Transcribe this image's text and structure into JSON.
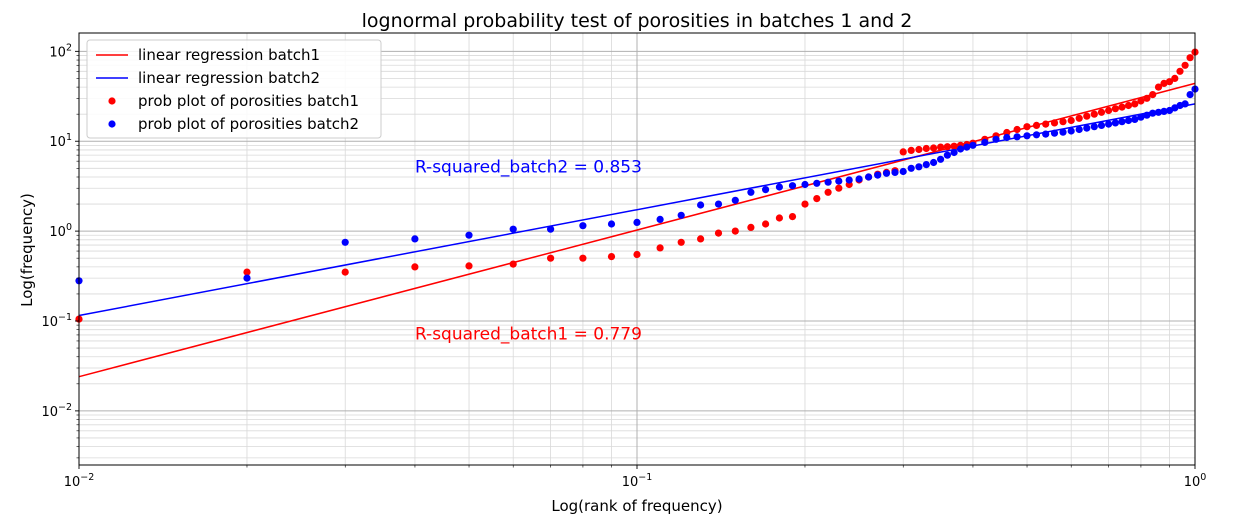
{
  "chart_data": {
    "type": "scatter",
    "title": "lognormal probability test of porosities in batches 1 and 2",
    "xlabel": "Log(rank of frequency)",
    "ylabel": "Log(frequency)",
    "xscale": "log",
    "yscale": "log",
    "xlim": [
      0.01,
      1
    ],
    "ylim": [
      0.0025,
      160
    ],
    "grid": "on (major and minor)",
    "legend_position": "top-left",
    "x_ticks": [
      {
        "value": 0.01,
        "base": "10",
        "exp": "−2"
      },
      {
        "value": 0.1,
        "base": "10",
        "exp": "−1"
      },
      {
        "value": 1,
        "base": "10",
        "exp": "0"
      }
    ],
    "y_ticks": [
      {
        "value": 0.01,
        "base": "10",
        "exp": "−2"
      },
      {
        "value": 0.1,
        "base": "10",
        "exp": "−1"
      },
      {
        "value": 1,
        "base": "10",
        "exp": "0"
      },
      {
        "value": 10,
        "base": "10",
        "exp": "1"
      },
      {
        "value": 100,
        "base": "10",
        "exp": "2"
      }
    ],
    "legend": [
      {
        "label": "linear regression batch1",
        "kind": "line",
        "color": "#ff0000"
      },
      {
        "label": "linear regression batch2",
        "kind": "line",
        "color": "#0000ff"
      },
      {
        "label": "prob plot of porosities batch1",
        "kind": "marker",
        "color": "#ff0000"
      },
      {
        "label": "prob plot of porosities batch2",
        "kind": "marker",
        "color": "#0000ff"
      }
    ],
    "annotations": [
      {
        "text": "R-squared_batch2 = 0.853",
        "color": "#0000ff",
        "x": 0.04,
        "y": 4.5
      },
      {
        "text": "R-squared_batch1 = 0.779",
        "color": "#ff0000",
        "x": 0.04,
        "y": 0.062
      }
    ],
    "series": [
      {
        "name": "linear regression batch1",
        "kind": "line",
        "color": "#ff0000",
        "x": [
          0.01,
          1
        ],
        "y": [
          0.024,
          44
        ]
      },
      {
        "name": "linear regression batch2",
        "kind": "line",
        "color": "#0000ff",
        "x": [
          0.01,
          1
        ],
        "y": [
          0.115,
          26
        ]
      },
      {
        "name": "prob plot of porosities batch1",
        "kind": "scatter",
        "color": "#ff0000",
        "x": [
          0.01,
          0.02,
          0.03,
          0.04,
          0.05,
          0.06,
          0.07,
          0.08,
          0.09,
          0.1,
          0.11,
          0.12,
          0.13,
          0.14,
          0.15,
          0.16,
          0.17,
          0.18,
          0.19,
          0.2,
          0.21,
          0.22,
          0.23,
          0.24,
          0.25,
          0.26,
          0.27,
          0.28,
          0.29,
          0.3,
          0.31,
          0.32,
          0.33,
          0.34,
          0.35,
          0.36,
          0.37,
          0.38,
          0.39,
          0.4,
          0.42,
          0.44,
          0.46,
          0.48,
          0.5,
          0.52,
          0.54,
          0.56,
          0.58,
          0.6,
          0.62,
          0.64,
          0.66,
          0.68,
          0.7,
          0.72,
          0.74,
          0.76,
          0.78,
          0.8,
          0.82,
          0.84,
          0.86,
          0.88,
          0.9,
          0.92,
          0.94,
          0.96,
          0.98,
          1.0
        ],
        "y": [
          0.105,
          0.35,
          0.35,
          0.4,
          0.41,
          0.43,
          0.5,
          0.5,
          0.52,
          0.55,
          0.65,
          0.75,
          0.82,
          0.95,
          1.0,
          1.1,
          1.2,
          1.4,
          1.45,
          2.0,
          2.3,
          2.7,
          3.0,
          3.3,
          3.7,
          4.0,
          4.3,
          4.5,
          4.7,
          7.6,
          7.9,
          8.1,
          8.3,
          8.4,
          8.6,
          8.7,
          8.8,
          9.0,
          9.2,
          9.5,
          10.5,
          11.5,
          12.5,
          13.5,
          14.5,
          15.0,
          15.5,
          16.0,
          16.5,
          17.0,
          18.0,
          19.0,
          20.0,
          21.0,
          22.0,
          23.0,
          24.0,
          25.0,
          26.0,
          28.0,
          30.0,
          33.0,
          40.0,
          44.0,
          46.0,
          50.0,
          60.0,
          70.0,
          85.0,
          98.0
        ]
      },
      {
        "name": "prob plot of porosities batch2",
        "kind": "scatter",
        "color": "#0000ff",
        "x": [
          0.01,
          0.02,
          0.03,
          0.04,
          0.05,
          0.06,
          0.07,
          0.08,
          0.09,
          0.1,
          0.11,
          0.12,
          0.13,
          0.14,
          0.15,
          0.16,
          0.17,
          0.18,
          0.19,
          0.2,
          0.21,
          0.22,
          0.23,
          0.24,
          0.25,
          0.26,
          0.27,
          0.28,
          0.29,
          0.3,
          0.31,
          0.32,
          0.33,
          0.34,
          0.35,
          0.36,
          0.37,
          0.38,
          0.39,
          0.4,
          0.42,
          0.44,
          0.46,
          0.48,
          0.5,
          0.52,
          0.54,
          0.56,
          0.58,
          0.6,
          0.62,
          0.64,
          0.66,
          0.68,
          0.7,
          0.72,
          0.74,
          0.76,
          0.78,
          0.8,
          0.82,
          0.84,
          0.86,
          0.88,
          0.9,
          0.92,
          0.94,
          0.96,
          0.98,
          1.0
        ],
        "y": [
          0.28,
          0.3,
          0.75,
          0.82,
          0.9,
          1.05,
          1.05,
          1.15,
          1.2,
          1.25,
          1.35,
          1.5,
          1.95,
          2.0,
          2.2,
          2.7,
          2.9,
          3.1,
          3.2,
          3.3,
          3.4,
          3.5,
          3.6,
          3.7,
          3.8,
          4.0,
          4.2,
          4.4,
          4.5,
          4.6,
          5.0,
          5.2,
          5.5,
          5.8,
          6.3,
          7.0,
          7.5,
          8.2,
          8.6,
          9.0,
          9.7,
          10.5,
          11.0,
          11.2,
          11.5,
          11.8,
          12.0,
          12.3,
          12.6,
          13.0,
          13.5,
          14.0,
          14.5,
          15.0,
          15.5,
          16.0,
          16.5,
          17.0,
          17.5,
          18.5,
          19.5,
          20.5,
          21.0,
          21.5,
          22.0,
          23.5,
          25.0,
          26.0,
          33.0,
          38.0
        ]
      }
    ]
  }
}
